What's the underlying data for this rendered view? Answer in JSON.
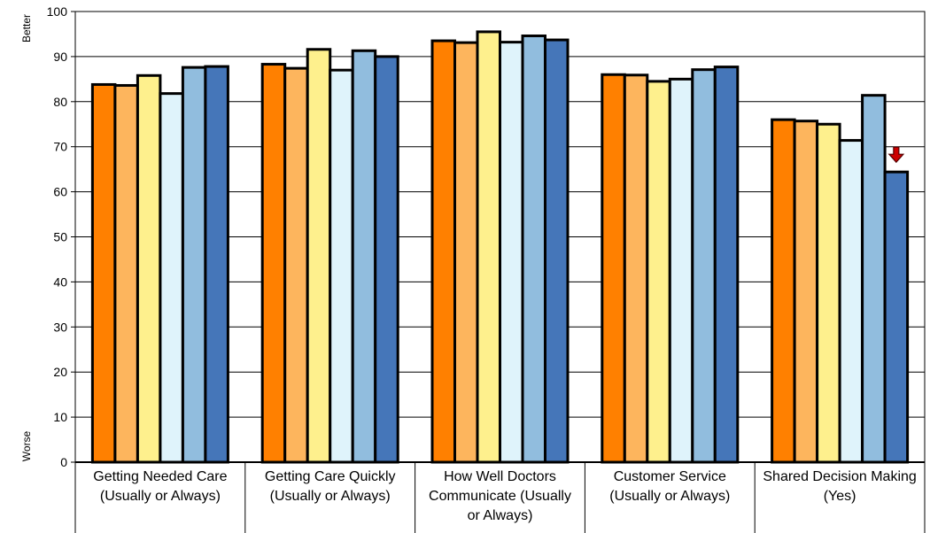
{
  "chart_data": {
    "type": "bar",
    "title": "",
    "xlabel": "",
    "ylabel": "",
    "y_top_label": "Better",
    "y_bottom_label": "Worse",
    "ylim": [
      0,
      100
    ],
    "yticks": [
      0,
      10,
      20,
      30,
      40,
      50,
      60,
      70,
      80,
      90,
      100
    ],
    "grid": true,
    "categories": [
      "Getting Needed Care (Usually or Always)",
      "Getting Care Quickly (Usually or Always)",
      "How Well Doctors Communicate (Usually or Always)",
      "Customer Service (Usually or Always)",
      "Shared Decision Making (Yes)"
    ],
    "series": [
      {
        "color": "#FF8000",
        "values": [
          83.8,
          88.3,
          93.5,
          86.0,
          76.0
        ]
      },
      {
        "color": "#FDB55D",
        "values": [
          83.6,
          87.4,
          93.1,
          85.9,
          75.7
        ]
      },
      {
        "color": "#FEF08D",
        "values": [
          85.8,
          91.6,
          95.5,
          84.5,
          75.0
        ]
      },
      {
        "color": "#DFF3FB",
        "values": [
          81.8,
          87.0,
          93.2,
          85.0,
          71.4
        ]
      },
      {
        "color": "#91BDDE",
        "values": [
          87.6,
          91.3,
          94.6,
          87.1,
          81.4
        ]
      },
      {
        "color": "#4576B9",
        "values": [
          87.8,
          90.0,
          93.7,
          87.7,
          64.4
        ]
      }
    ],
    "markers": [
      {
        "category": 4,
        "series": 5,
        "type": "down-arrow",
        "color": "#CC0000"
      }
    ]
  }
}
